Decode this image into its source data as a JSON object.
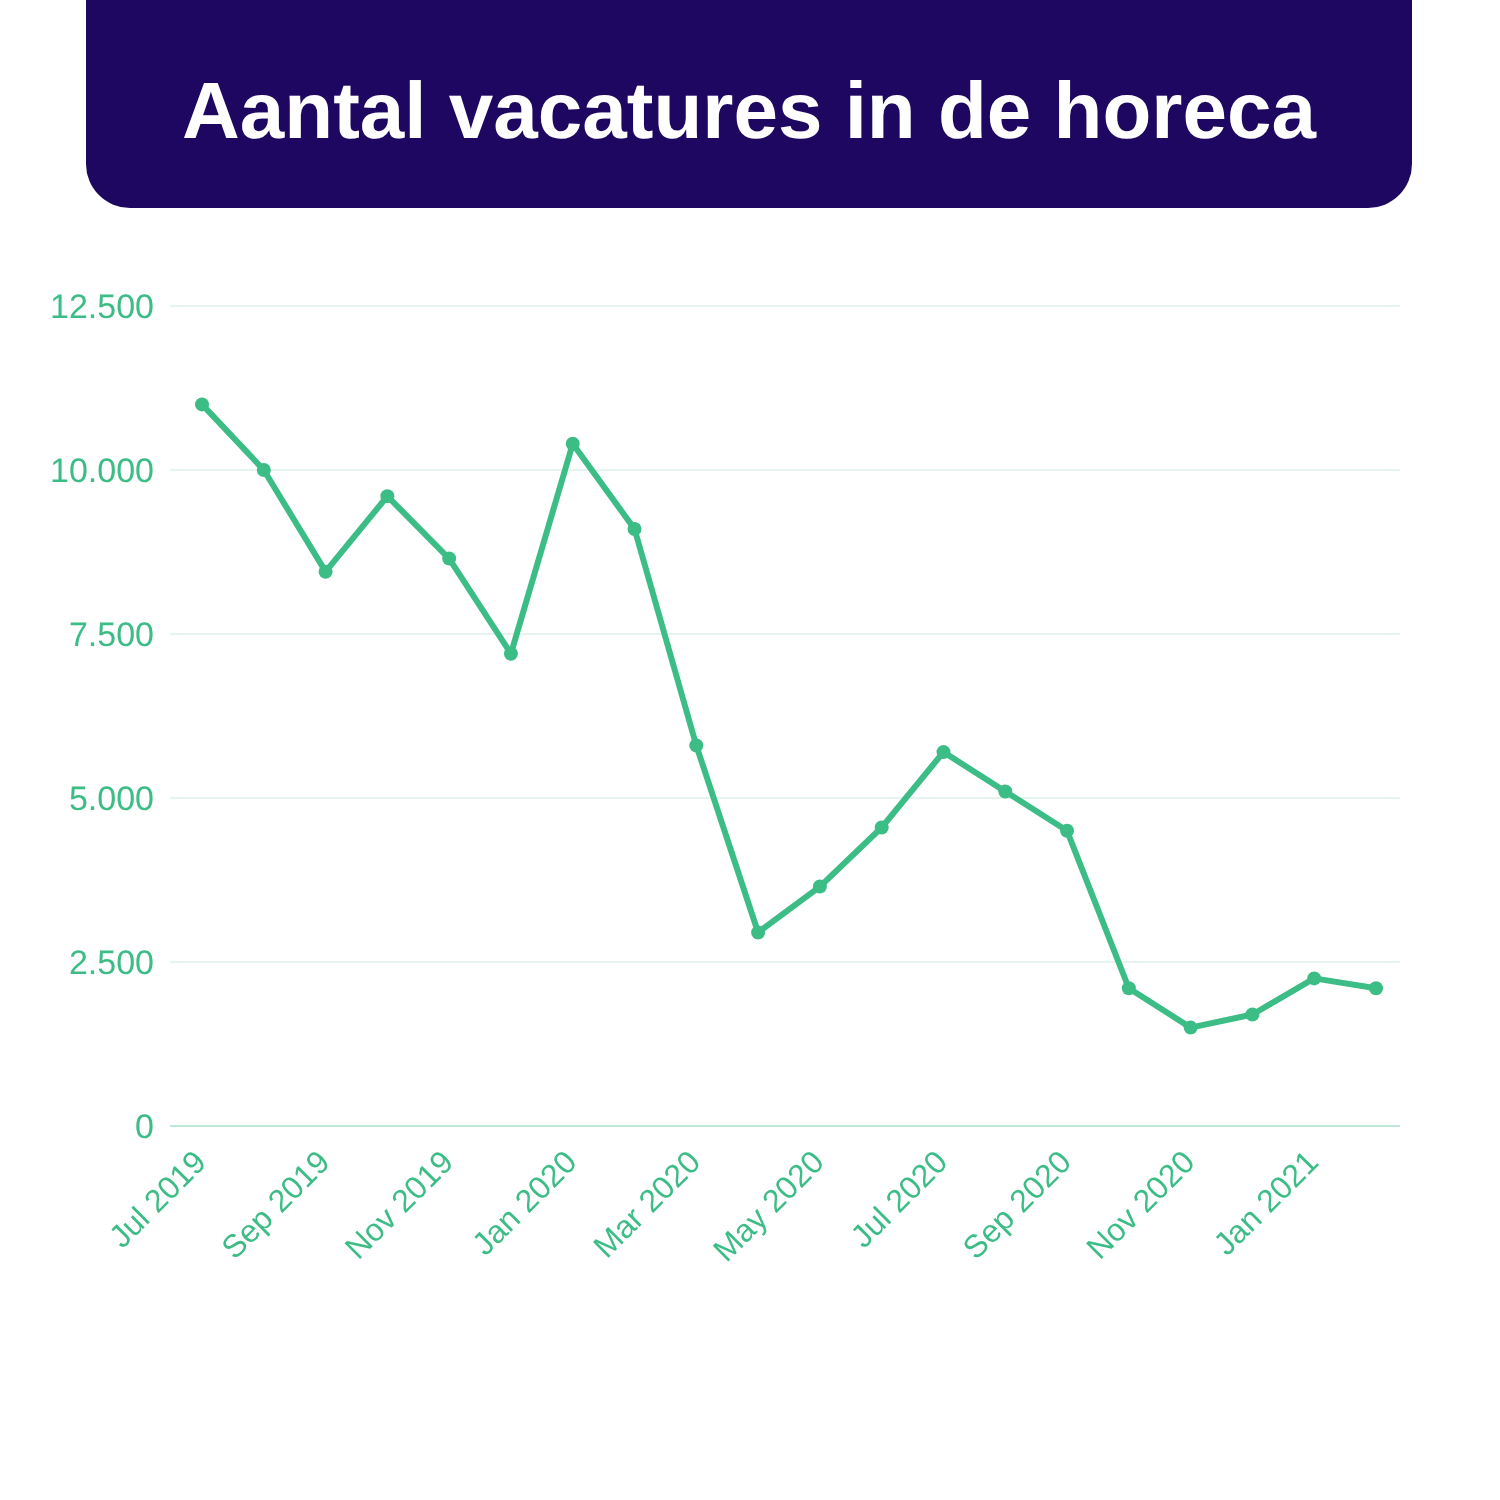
{
  "chart_data": {
    "type": "line",
    "title": "Aantal vacatures in de horeca",
    "categories": [
      "Jul 2019",
      null,
      "Sep 2019",
      null,
      "Nov 2019",
      null,
      "Jan 2020",
      null,
      "Mar 2020",
      null,
      "May 2020",
      null,
      "Jul 2020",
      null,
      "Sep 2020",
      null,
      "Nov 2020",
      null,
      "Jan 2021",
      null
    ],
    "series": [
      {
        "color": "#3dbd86",
        "values": [
          11000,
          10000,
          8450,
          9600,
          8650,
          7200,
          10400,
          9100,
          5800,
          2950,
          3650,
          4550,
          5700,
          5100,
          4500,
          2100,
          1500,
          1700,
          2250,
          2100
        ]
      }
    ],
    "ylim": [
      0,
      12500
    ],
    "yticks": [
      0,
      {
        "value": 2500,
        "label": "2.500"
      },
      {
        "value": 5000,
        "label": "5.000"
      },
      {
        "value": 7500,
        "label": "7.500"
      },
      {
        "value": 10000,
        "label": "10.000"
      },
      {
        "value": 12500,
        "label": "12.500"
      }
    ],
    "grid": "y",
    "legend": false,
    "marker": "circle",
    "line_style": "solid"
  }
}
